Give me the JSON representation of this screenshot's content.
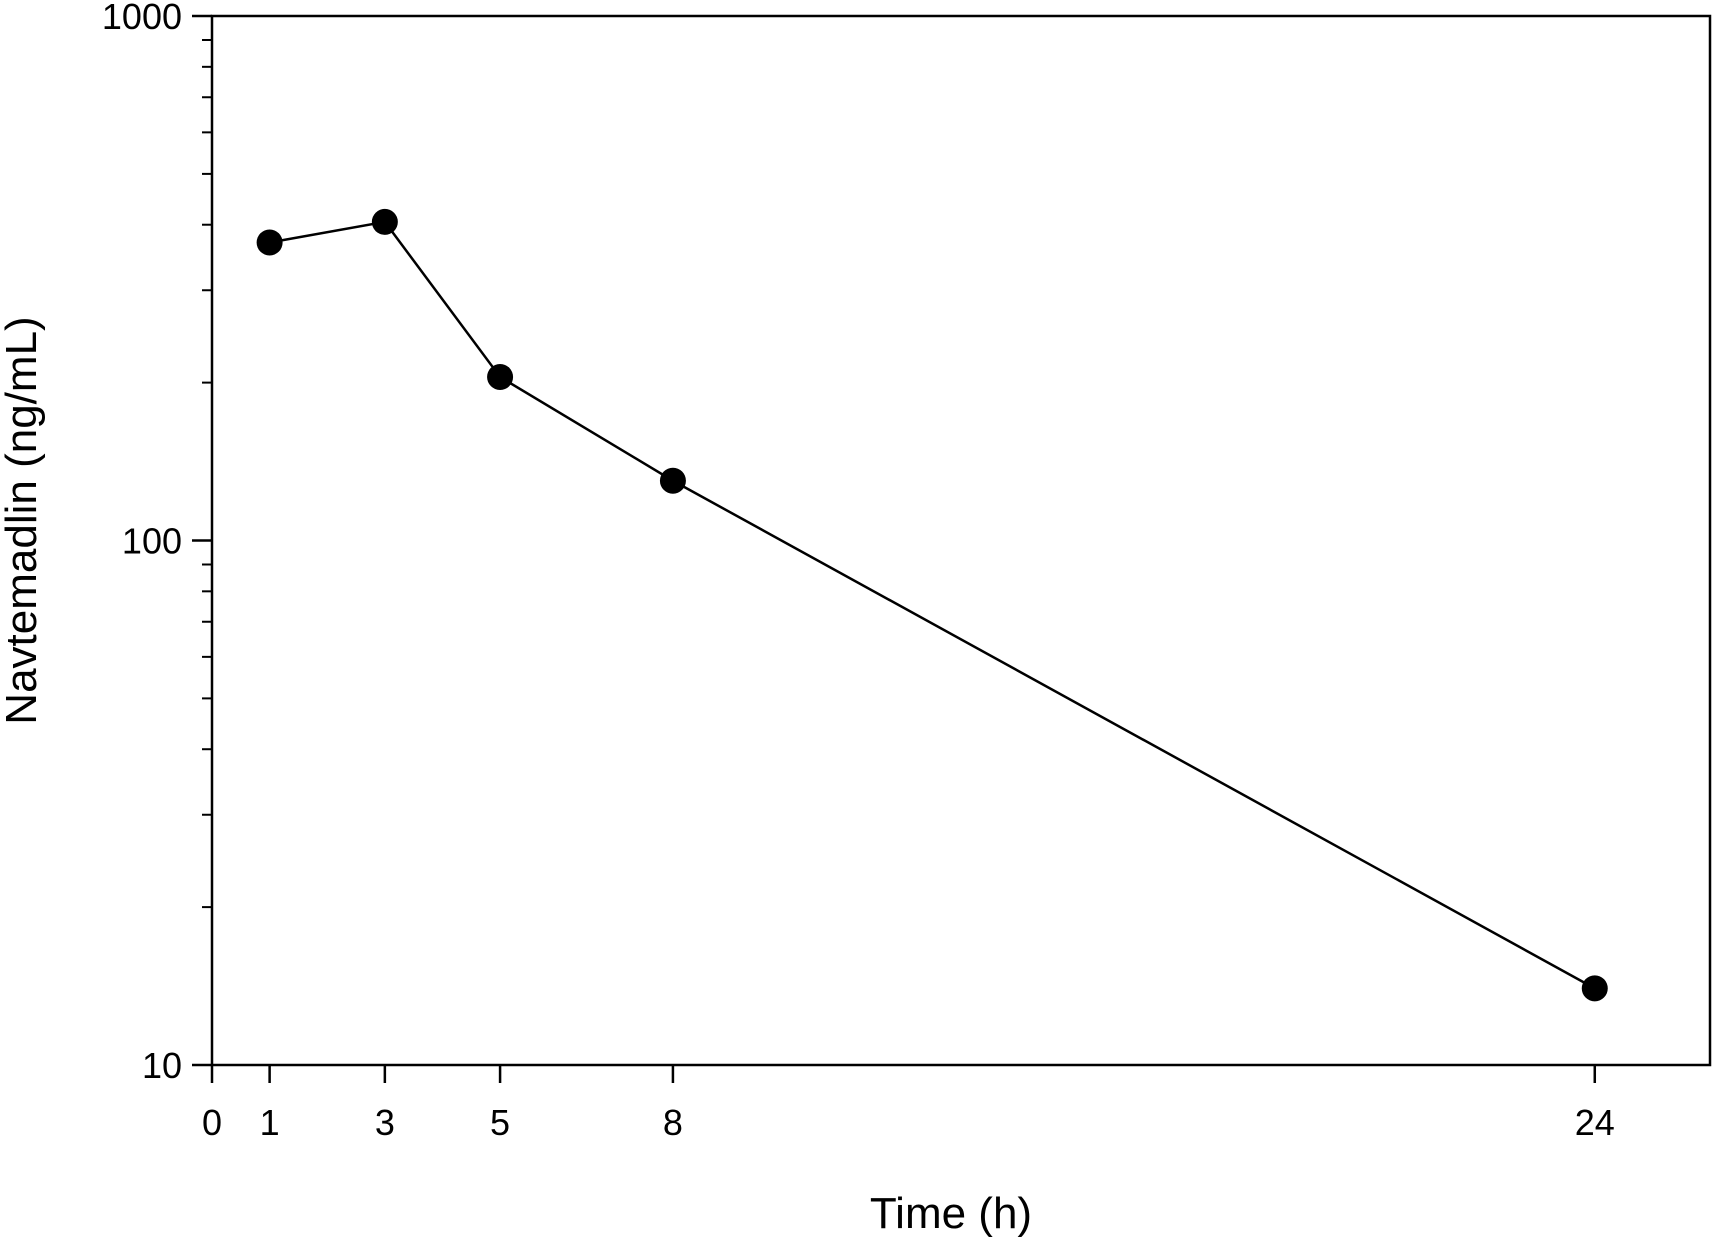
{
  "chart_data": {
    "type": "line",
    "title": "",
    "xlabel": "Time (h)",
    "ylabel": "Navtemadlin (ng/mL)",
    "x_scale": "linear",
    "y_scale": "log",
    "xlim": [
      0,
      26
    ],
    "ylim": [
      10,
      1000
    ],
    "x_ticks": [
      0,
      1,
      3,
      5,
      8,
      24
    ],
    "x_tick_labels": [
      "0",
      "1",
      "3",
      "5",
      "8",
      "24"
    ],
    "y_ticks": [
      10,
      100,
      1000
    ],
    "y_tick_labels": [
      "10",
      "100",
      "1000"
    ],
    "grid": false,
    "legend": "none",
    "marker": "filled-circle",
    "colors": {
      "line": "#000000",
      "marker": "#000000",
      "axes": "#000000"
    },
    "series": [
      {
        "x": [
          1,
          3,
          5,
          8,
          24
        ],
        "y": [
          370,
          405,
          205,
          130,
          14
        ]
      }
    ]
  }
}
